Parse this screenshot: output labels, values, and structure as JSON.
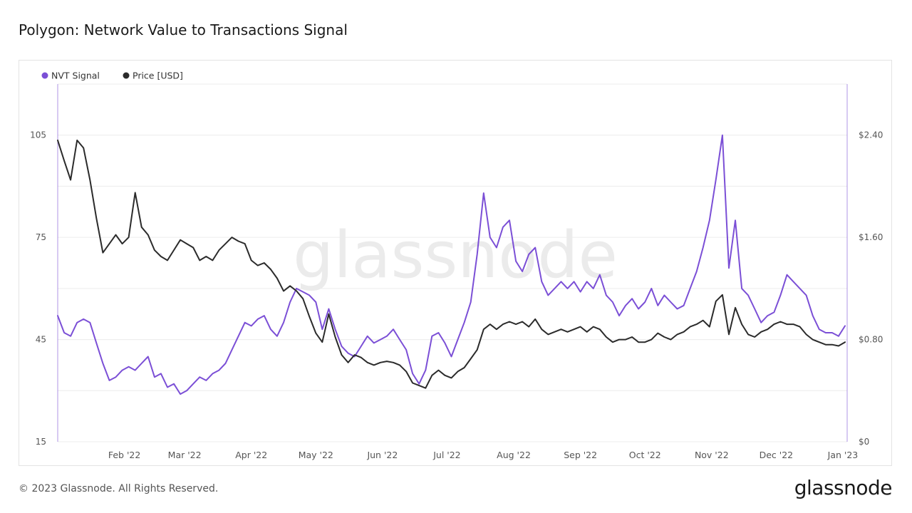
{
  "title": "Polygon: Network Value to Transactions Signal",
  "footer": {
    "copyright": "© 2023 Glassnode. All Rights Reserved.",
    "logo": "glassnode"
  },
  "watermark": "glassnode",
  "colors": {
    "nvt": "#7b4fd6",
    "price": "#2b2b2b",
    "grid": "#ececec",
    "axis_text": "#555555",
    "watermark": "#ebebeb"
  },
  "chart_data": {
    "type": "line",
    "title": "Polygon: Network Value to Transactions Signal",
    "legend_position": "top-left",
    "grid": true,
    "x_axis": {
      "range": [
        "2022-01-01",
        "2023-01-03"
      ],
      "tick_labels": [
        "Feb '22",
        "Mar '22",
        "Apr '22",
        "May '22",
        "Jun '22",
        "Jul '22",
        "Aug '22",
        "Sep '22",
        "Oct '22",
        "Nov '22",
        "Dec '22",
        "Jan '23"
      ],
      "tick_dates": [
        "2022-02-01",
        "2022-03-01",
        "2022-04-01",
        "2022-05-01",
        "2022-06-01",
        "2022-07-01",
        "2022-08-01",
        "2022-09-01",
        "2022-10-01",
        "2022-11-01",
        "2022-12-01",
        "2023-01-01"
      ]
    },
    "y_left": {
      "range": [
        15,
        120
      ],
      "tick_labels": [
        "105",
        "75",
        "45",
        "15"
      ],
      "tick_values": [
        105,
        75,
        45,
        15
      ]
    },
    "y_right": {
      "range": [
        0,
        2.8
      ],
      "tick_labels": [
        "$2.40",
        "$1.60",
        "$0.80",
        "$0"
      ],
      "tick_values": [
        2.4,
        1.6,
        0.8,
        0
      ]
    },
    "series": [
      {
        "name": "NVT Signal",
        "axis": "left",
        "dates": [
          "2022-01-01",
          "2022-01-04",
          "2022-01-07",
          "2022-01-10",
          "2022-01-13",
          "2022-01-16",
          "2022-01-19",
          "2022-01-22",
          "2022-01-25",
          "2022-01-28",
          "2022-01-31",
          "2022-02-03",
          "2022-02-06",
          "2022-02-09",
          "2022-02-12",
          "2022-02-15",
          "2022-02-18",
          "2022-02-21",
          "2022-02-24",
          "2022-02-27",
          "2022-03-02",
          "2022-03-05",
          "2022-03-08",
          "2022-03-11",
          "2022-03-14",
          "2022-03-17",
          "2022-03-20",
          "2022-03-23",
          "2022-03-26",
          "2022-03-29",
          "2022-04-01",
          "2022-04-04",
          "2022-04-07",
          "2022-04-10",
          "2022-04-13",
          "2022-04-16",
          "2022-04-19",
          "2022-04-22",
          "2022-04-25",
          "2022-04-28",
          "2022-05-01",
          "2022-05-04",
          "2022-05-07",
          "2022-05-10",
          "2022-05-13",
          "2022-05-16",
          "2022-05-19",
          "2022-05-22",
          "2022-05-25",
          "2022-05-28",
          "2022-05-31",
          "2022-06-03",
          "2022-06-06",
          "2022-06-09",
          "2022-06-12",
          "2022-06-15",
          "2022-06-18",
          "2022-06-21",
          "2022-06-24",
          "2022-06-27",
          "2022-06-30",
          "2022-07-03",
          "2022-07-06",
          "2022-07-09",
          "2022-07-12",
          "2022-07-15",
          "2022-07-18",
          "2022-07-21",
          "2022-07-24",
          "2022-07-27",
          "2022-07-30",
          "2022-08-02",
          "2022-08-05",
          "2022-08-08",
          "2022-08-11",
          "2022-08-14",
          "2022-08-17",
          "2022-08-20",
          "2022-08-23",
          "2022-08-26",
          "2022-08-29",
          "2022-09-01",
          "2022-09-04",
          "2022-09-07",
          "2022-09-10",
          "2022-09-13",
          "2022-09-16",
          "2022-09-19",
          "2022-09-22",
          "2022-09-25",
          "2022-09-28",
          "2022-10-01",
          "2022-10-04",
          "2022-10-07",
          "2022-10-10",
          "2022-10-13",
          "2022-10-16",
          "2022-10-19",
          "2022-10-22",
          "2022-10-25",
          "2022-10-28",
          "2022-10-31",
          "2022-11-03",
          "2022-11-06",
          "2022-11-09",
          "2022-11-12",
          "2022-11-15",
          "2022-11-18",
          "2022-11-21",
          "2022-11-24",
          "2022-11-27",
          "2022-11-30",
          "2022-12-03",
          "2022-12-06",
          "2022-12-09",
          "2022-12-12",
          "2022-12-15",
          "2022-12-18",
          "2022-12-21",
          "2022-12-24",
          "2022-12-27",
          "2022-12-30",
          "2023-01-02"
        ],
        "values": [
          52,
          47,
          46,
          50,
          51,
          50,
          44,
          38,
          33,
          34,
          36,
          37,
          36,
          38,
          40,
          34,
          35,
          31,
          32,
          29,
          30,
          32,
          34,
          33,
          35,
          36,
          38,
          42,
          46,
          50,
          49,
          51,
          52,
          48,
          46,
          50,
          56,
          60,
          59,
          58,
          56,
          48,
          54,
          48,
          43,
          41,
          40,
          43,
          46,
          44,
          45,
          46,
          48,
          45,
          42,
          35,
          32,
          36,
          46,
          47,
          44,
          40,
          45,
          50,
          56,
          70,
          88,
          75,
          72,
          78,
          80,
          68,
          65,
          70,
          72,
          62,
          58,
          60,
          62,
          60,
          62,
          59,
          62,
          60,
          64,
          58,
          56,
          52,
          55,
          57,
          54,
          56,
          60,
          55,
          58,
          56,
          54,
          55,
          60,
          65,
          72,
          80,
          92,
          105,
          66,
          80,
          60,
          58,
          54,
          50,
          52,
          53,
          58,
          64,
          62,
          60,
          58,
          52,
          48,
          47,
          47,
          46,
          49
        ],
        "values_note": "",
        "note": ""
      },
      {
        "name": "Price [USD]",
        "axis": "right",
        "dates": [
          "2022-01-01",
          "2022-01-04",
          "2022-01-07",
          "2022-01-10",
          "2022-01-13",
          "2022-01-16",
          "2022-01-19",
          "2022-01-22",
          "2022-01-25",
          "2022-01-28",
          "2022-01-31",
          "2022-02-03",
          "2022-02-06",
          "2022-02-09",
          "2022-02-12",
          "2022-02-15",
          "2022-02-18",
          "2022-02-21",
          "2022-02-24",
          "2022-02-27",
          "2022-03-02",
          "2022-03-05",
          "2022-03-08",
          "2022-03-11",
          "2022-03-14",
          "2022-03-17",
          "2022-03-20",
          "2022-03-23",
          "2022-03-26",
          "2022-03-29",
          "2022-04-01",
          "2022-04-04",
          "2022-04-07",
          "2022-04-10",
          "2022-04-13",
          "2022-04-16",
          "2022-04-19",
          "2022-04-22",
          "2022-04-25",
          "2022-04-28",
          "2022-05-01",
          "2022-05-04",
          "2022-05-07",
          "2022-05-10",
          "2022-05-13",
          "2022-05-16",
          "2022-05-19",
          "2022-05-22",
          "2022-05-25",
          "2022-05-28",
          "2022-05-31",
          "2022-06-03",
          "2022-06-06",
          "2022-06-09",
          "2022-06-12",
          "2022-06-15",
          "2022-06-18",
          "2022-06-21",
          "2022-06-24",
          "2022-06-27",
          "2022-06-30",
          "2022-07-03",
          "2022-07-06",
          "2022-07-09",
          "2022-07-12",
          "2022-07-15",
          "2022-07-18",
          "2022-07-21",
          "2022-07-24",
          "2022-07-27",
          "2022-07-30",
          "2022-08-02",
          "2022-08-05",
          "2022-08-08",
          "2022-08-11",
          "2022-08-14",
          "2022-08-17",
          "2022-08-20",
          "2022-08-23",
          "2022-08-26",
          "2022-08-29",
          "2022-09-01",
          "2022-09-04",
          "2022-09-07",
          "2022-09-10",
          "2022-09-13",
          "2022-09-16",
          "2022-09-19",
          "2022-09-22",
          "2022-09-25",
          "2022-09-28",
          "2022-10-01",
          "2022-10-04",
          "2022-10-07",
          "2022-10-10",
          "2022-10-13",
          "2022-10-16",
          "2022-10-19",
          "2022-10-22",
          "2022-10-25",
          "2022-10-28",
          "2022-10-31",
          "2022-11-03",
          "2022-11-06",
          "2022-11-09",
          "2022-11-12",
          "2022-11-15",
          "2022-11-18",
          "2022-11-21",
          "2022-11-24",
          "2022-11-27",
          "2022-11-30",
          "2022-12-03",
          "2022-12-06",
          "2022-12-09",
          "2022-12-12",
          "2022-12-15",
          "2022-12-18",
          "2022-12-21",
          "2022-12-24",
          "2022-12-27",
          "2022-12-30",
          "2023-01-02"
        ],
        "values": [
          2.36,
          2.2,
          2.05,
          2.36,
          2.3,
          2.05,
          1.75,
          1.48,
          1.55,
          1.62,
          1.55,
          1.6,
          1.95,
          1.68,
          1.62,
          1.5,
          1.45,
          1.42,
          1.5,
          1.58,
          1.55,
          1.52,
          1.42,
          1.45,
          1.42,
          1.5,
          1.55,
          1.6,
          1.57,
          1.55,
          1.42,
          1.38,
          1.4,
          1.35,
          1.28,
          1.18,
          1.22,
          1.18,
          1.12,
          0.98,
          0.85,
          0.78,
          1.0,
          0.82,
          0.68,
          0.62,
          0.68,
          0.66,
          0.62,
          0.6,
          0.62,
          0.63,
          0.62,
          0.6,
          0.55,
          0.46,
          0.44,
          0.42,
          0.52,
          0.56,
          0.52,
          0.5,
          0.55,
          0.58,
          0.65,
          0.72,
          0.88,
          0.92,
          0.88,
          0.92,
          0.94,
          0.92,
          0.94,
          0.9,
          0.96,
          0.88,
          0.84,
          0.86,
          0.88,
          0.86,
          0.88,
          0.9,
          0.86,
          0.9,
          0.88,
          0.82,
          0.78,
          0.8,
          0.8,
          0.82,
          0.78,
          0.78,
          0.8,
          0.85,
          0.82,
          0.8,
          0.84,
          0.86,
          0.9,
          0.92,
          0.95,
          0.9,
          1.1,
          1.15,
          0.84,
          1.05,
          0.92,
          0.84,
          0.82,
          0.86,
          0.88,
          0.92,
          0.94,
          0.92,
          0.92,
          0.9,
          0.84,
          0.8,
          0.78,
          0.76,
          0.76,
          0.75,
          0.78
        ]
      }
    ]
  }
}
